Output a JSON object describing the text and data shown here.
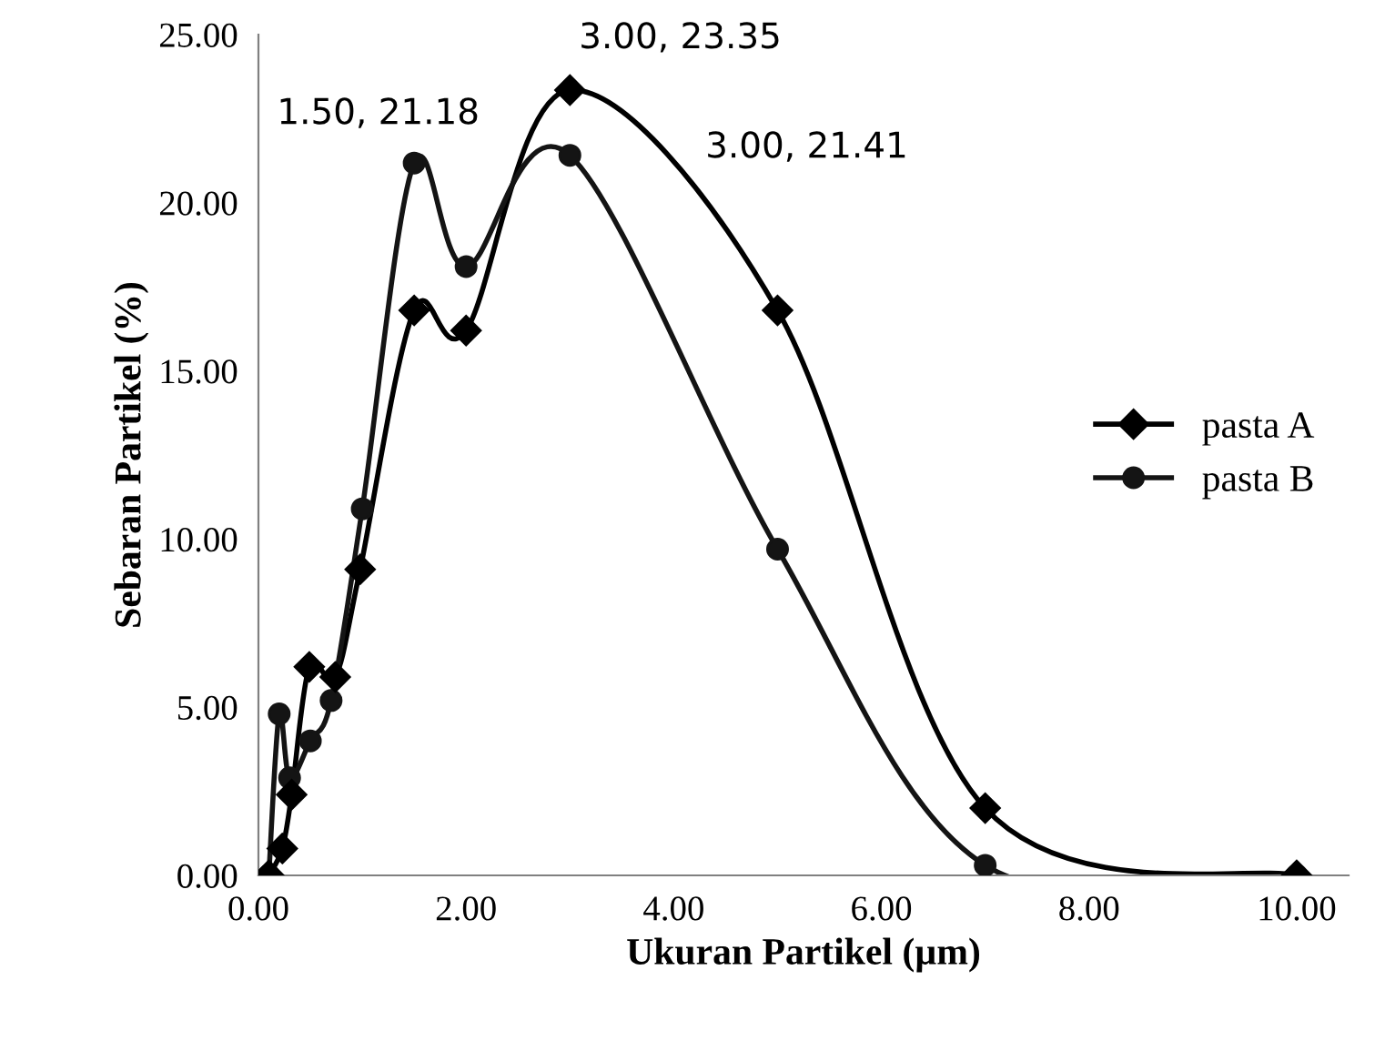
{
  "chart_data": {
    "type": "line",
    "xlabel": "Ukuran Partikel (µm)",
    "ylabel": "Sebaran Partikel (%)",
    "xlim": [
      0,
      10.5
    ],
    "xticks": [
      {
        "value": 0,
        "label": "0.00"
      },
      {
        "value": 2,
        "label": "2.00"
      },
      {
        "value": 4,
        "label": "4.00"
      },
      {
        "value": 6,
        "label": "6.00"
      },
      {
        "value": 8,
        "label": "8.00"
      },
      {
        "value": 10,
        "label": "10.00"
      }
    ],
    "ylim": [
      0,
      25
    ],
    "yticks": [
      {
        "value": 0,
        "label": "0.00"
      },
      {
        "value": 5,
        "label": "5.00"
      },
      {
        "value": 10,
        "label": "10.00"
      },
      {
        "value": 15,
        "label": "15.00"
      },
      {
        "value": 20,
        "label": "20.00"
      },
      {
        "value": 25,
        "label": "25.00"
      }
    ],
    "grid": false,
    "legend": "right",
    "line_style": "solid",
    "series": [
      {
        "name": "pasta A",
        "color": "#000000",
        "marker": "diamond",
        "x": [
          0.1,
          0.23,
          0.32,
          0.49,
          0.74,
          0.98,
          1.5,
          2,
          3,
          5,
          7,
          10
        ],
        "values": [
          0,
          0.8,
          2.4,
          6.2,
          5.9,
          9.1,
          16.8,
          16.2,
          23.35,
          16.8,
          2.0,
          0
        ]
      },
      {
        "name": "pasta B",
        "color": "#141414",
        "marker": "circle",
        "x": [
          0.1,
          0.2,
          0.3,
          0.5,
          0.7,
          1.0,
          1.5,
          2,
          3,
          5,
          7,
          10
        ],
        "values": [
          0,
          4.8,
          2.9,
          4.0,
          5.2,
          10.9,
          21.18,
          18.1,
          21.41,
          9.7,
          0.3,
          0
        ]
      }
    ],
    "annotations": [
      "1.50, 21.18",
      "3.00, 23.35",
      "3.00, 21.41"
    ]
  }
}
